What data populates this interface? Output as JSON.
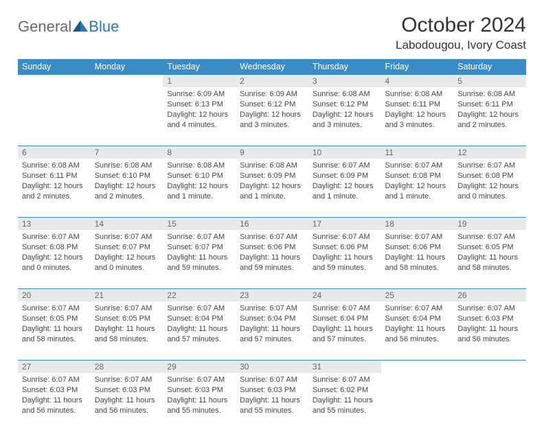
{
  "logo": {
    "word1": "General",
    "word2": "Blue"
  },
  "header": {
    "title": "October 2024",
    "location": "Labodougou, Ivory Coast"
  },
  "colors": {
    "header_bg": "#3b8bc4",
    "daynum_bg": "#e9e9e9",
    "rule": "#3b8bc4"
  },
  "weekdays": [
    "Sunday",
    "Monday",
    "Tuesday",
    "Wednesday",
    "Thursday",
    "Friday",
    "Saturday"
  ],
  "weeks": [
    [
      {
        "n": "",
        "empty": true
      },
      {
        "n": "",
        "empty": true
      },
      {
        "n": "1",
        "sunrise": "6:09 AM",
        "sunset": "6:13 PM",
        "daylight": "12 hours and 4 minutes."
      },
      {
        "n": "2",
        "sunrise": "6:09 AM",
        "sunset": "6:12 PM",
        "daylight": "12 hours and 3 minutes."
      },
      {
        "n": "3",
        "sunrise": "6:08 AM",
        "sunset": "6:12 PM",
        "daylight": "12 hours and 3 minutes."
      },
      {
        "n": "4",
        "sunrise": "6:08 AM",
        "sunset": "6:11 PM",
        "daylight": "12 hours and 3 minutes."
      },
      {
        "n": "5",
        "sunrise": "6:08 AM",
        "sunset": "6:11 PM",
        "daylight": "12 hours and 2 minutes."
      }
    ],
    [
      {
        "n": "6",
        "sunrise": "6:08 AM",
        "sunset": "6:11 PM",
        "daylight": "12 hours and 2 minutes."
      },
      {
        "n": "7",
        "sunrise": "6:08 AM",
        "sunset": "6:10 PM",
        "daylight": "12 hours and 2 minutes."
      },
      {
        "n": "8",
        "sunrise": "6:08 AM",
        "sunset": "6:10 PM",
        "daylight": "12 hours and 1 minute."
      },
      {
        "n": "9",
        "sunrise": "6:08 AM",
        "sunset": "6:09 PM",
        "daylight": "12 hours and 1 minute."
      },
      {
        "n": "10",
        "sunrise": "6:07 AM",
        "sunset": "6:09 PM",
        "daylight": "12 hours and 1 minute."
      },
      {
        "n": "11",
        "sunrise": "6:07 AM",
        "sunset": "6:08 PM",
        "daylight": "12 hours and 1 minute."
      },
      {
        "n": "12",
        "sunrise": "6:07 AM",
        "sunset": "6:08 PM",
        "daylight": "12 hours and 0 minutes."
      }
    ],
    [
      {
        "n": "13",
        "sunrise": "6:07 AM",
        "sunset": "6:08 PM",
        "daylight": "12 hours and 0 minutes."
      },
      {
        "n": "14",
        "sunrise": "6:07 AM",
        "sunset": "6:07 PM",
        "daylight": "12 hours and 0 minutes."
      },
      {
        "n": "15",
        "sunrise": "6:07 AM",
        "sunset": "6:07 PM",
        "daylight": "11 hours and 59 minutes."
      },
      {
        "n": "16",
        "sunrise": "6:07 AM",
        "sunset": "6:06 PM",
        "daylight": "11 hours and 59 minutes."
      },
      {
        "n": "17",
        "sunrise": "6:07 AM",
        "sunset": "6:06 PM",
        "daylight": "11 hours and 59 minutes."
      },
      {
        "n": "18",
        "sunrise": "6:07 AM",
        "sunset": "6:06 PM",
        "daylight": "11 hours and 58 minutes."
      },
      {
        "n": "19",
        "sunrise": "6:07 AM",
        "sunset": "6:05 PM",
        "daylight": "11 hours and 58 minutes."
      }
    ],
    [
      {
        "n": "20",
        "sunrise": "6:07 AM",
        "sunset": "6:05 PM",
        "daylight": "11 hours and 58 minutes."
      },
      {
        "n": "21",
        "sunrise": "6:07 AM",
        "sunset": "6:05 PM",
        "daylight": "11 hours and 58 minutes."
      },
      {
        "n": "22",
        "sunrise": "6:07 AM",
        "sunset": "6:04 PM",
        "daylight": "11 hours and 57 minutes."
      },
      {
        "n": "23",
        "sunrise": "6:07 AM",
        "sunset": "6:04 PM",
        "daylight": "11 hours and 57 minutes."
      },
      {
        "n": "24",
        "sunrise": "6:07 AM",
        "sunset": "6:04 PM",
        "daylight": "11 hours and 57 minutes."
      },
      {
        "n": "25",
        "sunrise": "6:07 AM",
        "sunset": "6:04 PM",
        "daylight": "11 hours and 56 minutes."
      },
      {
        "n": "26",
        "sunrise": "6:07 AM",
        "sunset": "6:03 PM",
        "daylight": "11 hours and 56 minutes."
      }
    ],
    [
      {
        "n": "27",
        "sunrise": "6:07 AM",
        "sunset": "6:03 PM",
        "daylight": "11 hours and 56 minutes."
      },
      {
        "n": "28",
        "sunrise": "6:07 AM",
        "sunset": "6:03 PM",
        "daylight": "11 hours and 56 minutes."
      },
      {
        "n": "29",
        "sunrise": "6:07 AM",
        "sunset": "6:03 PM",
        "daylight": "11 hours and 55 minutes."
      },
      {
        "n": "30",
        "sunrise": "6:07 AM",
        "sunset": "6:03 PM",
        "daylight": "11 hours and 55 minutes."
      },
      {
        "n": "31",
        "sunrise": "6:07 AM",
        "sunset": "6:02 PM",
        "daylight": "11 hours and 55 minutes."
      },
      {
        "n": "",
        "empty": true
      },
      {
        "n": "",
        "empty": true
      }
    ]
  ],
  "labels": {
    "sunrise": "Sunrise:",
    "sunset": "Sunset:",
    "daylight": "Daylight:"
  }
}
